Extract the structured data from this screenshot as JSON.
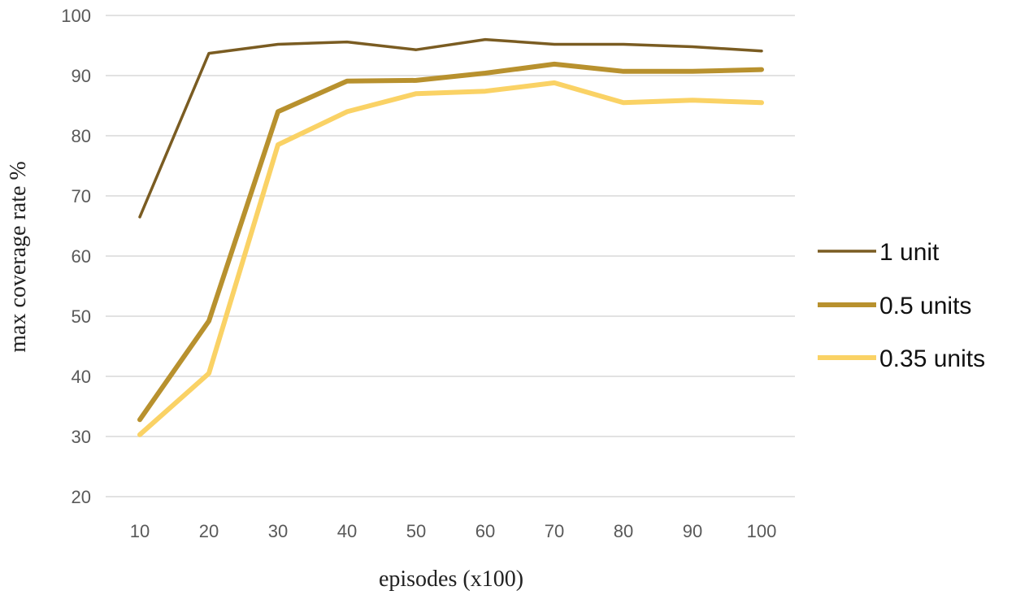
{
  "chart_data": {
    "type": "line",
    "title": "",
    "xlabel": "episodes (x100)",
    "ylabel": "max coverage rate %",
    "x": [
      10,
      20,
      30,
      40,
      50,
      60,
      70,
      80,
      90,
      100
    ],
    "ylim": [
      20,
      100
    ],
    "yticks": [
      20,
      30,
      40,
      50,
      60,
      70,
      80,
      90,
      100
    ],
    "grid": true,
    "legend_position": "right",
    "series": [
      {
        "name": "1 unit",
        "color": "#7a5c22",
        "values": [
          66.5,
          93.7,
          95.2,
          95.6,
          94.3,
          96.0,
          95.2,
          95.2,
          94.8,
          94.1
        ]
      },
      {
        "name": "0.5 units",
        "color": "#b8912e",
        "values": [
          32.8,
          49.2,
          84.0,
          89.1,
          89.2,
          90.4,
          91.9,
          90.7,
          90.7,
          91.0
        ]
      },
      {
        "name": "0.35 units",
        "color": "#fad265",
        "values": [
          30.3,
          40.5,
          78.5,
          84.0,
          87.0,
          87.4,
          88.8,
          85.5,
          85.9,
          85.5
        ]
      }
    ]
  }
}
